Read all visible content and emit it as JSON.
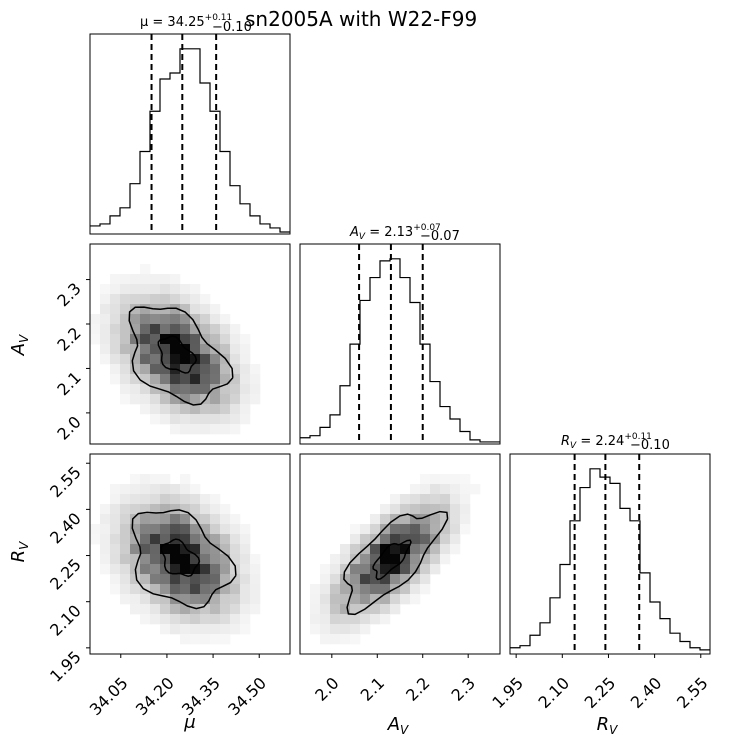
{
  "figure": {
    "suptitle": "sn2005A with W22-F99",
    "top_left_title": "μ = 34.25",
    "top_left_title_sup": "+0.11",
    "top_left_title_sub": "−0.10"
  },
  "chart_data": [
    {
      "type": "histogram",
      "panel": "mu-marginal",
      "title": "μ = 34.25 (+0.11 −0.10)",
      "xlim": [
        33.95,
        34.6
      ],
      "bins_edges": [
        33.95,
        33.9825,
        34.015,
        34.0475,
        34.08,
        34.1125,
        34.145,
        34.1775,
        34.21,
        34.2425,
        34.275,
        34.3075,
        34.34,
        34.3725,
        34.405,
        34.4375,
        34.47,
        34.5025,
        34.535,
        34.5675,
        34.6
      ],
      "counts": [
        4,
        5,
        9,
        13,
        25,
        41,
        61,
        77,
        80,
        92,
        92,
        75,
        61,
        41,
        24,
        15,
        9,
        5,
        3,
        1
      ],
      "quantiles": [
        34.15,
        34.25,
        34.36
      ]
    },
    {
      "type": "histogram",
      "panel": "av-marginal",
      "title_main": "A",
      "title_sub": "V",
      "title_value": " = 2.13",
      "title_sup": "+0.07",
      "title_subscript_err": "−0.07",
      "xlim": [
        1.93,
        2.37
      ],
      "bins_edges": [
        1.93,
        1.952,
        1.974,
        1.996,
        2.018,
        2.04,
        2.062,
        2.084,
        2.106,
        2.128,
        2.15,
        2.172,
        2.194,
        2.216,
        2.238,
        2.26,
        2.282,
        2.304,
        2.326,
        2.348,
        2.37
      ],
      "counts": [
        3,
        4,
        8,
        14,
        28,
        48,
        69,
        80,
        88,
        89,
        80,
        68,
        48,
        30,
        18,
        12,
        6,
        2,
        1,
        1
      ],
      "quantiles": [
        2.06,
        2.13,
        2.2
      ]
    },
    {
      "type": "histogram",
      "panel": "rv-marginal",
      "title_main": "R",
      "title_sub": "V",
      "title_value": " = 2.24",
      "title_sup": "+0.11",
      "title_subscript_err": "−0.10",
      "xlim": [
        1.93,
        2.58
      ],
      "bins_edges": [
        1.93,
        1.9625,
        1.995,
        2.0275,
        2.06,
        2.0925,
        2.125,
        2.1575,
        2.19,
        2.2225,
        2.255,
        2.2875,
        2.32,
        2.3525,
        2.385,
        2.4175,
        2.45,
        2.4825,
        2.515,
        2.5475,
        2.58
      ],
      "counts": [
        3,
        4,
        9,
        15,
        27,
        43,
        64,
        80,
        89,
        85,
        82,
        70,
        64,
        39,
        25,
        17,
        10,
        6,
        3,
        2
      ],
      "quantiles": [
        2.14,
        2.24,
        2.35
      ]
    },
    {
      "type": "heatmap",
      "panel": "av-vs-mu",
      "xlim": [
        33.95,
        34.6
      ],
      "ylim": [
        1.93,
        2.38
      ],
      "peak": {
        "x": 34.23,
        "y": 2.13
      },
      "correlation": -0.4,
      "xticks": [
        34.05,
        34.2,
        34.35,
        34.5
      ],
      "yticks": [
        2.0,
        2.1,
        2.2,
        2.3
      ]
    },
    {
      "type": "heatmap",
      "panel": "rv-vs-mu",
      "xlim": [
        33.95,
        34.6
      ],
      "ylim": [
        1.93,
        2.58
      ],
      "peak": {
        "x": 34.24,
        "y": 2.24
      },
      "correlation": -0.3,
      "xticks": [
        34.05,
        34.2,
        34.35,
        34.5
      ],
      "yticks": [
        1.95,
        2.1,
        2.25,
        2.4,
        2.55
      ]
    },
    {
      "type": "heatmap",
      "panel": "rv-vs-av",
      "xlim": [
        1.93,
        2.37
      ],
      "ylim": [
        1.93,
        2.58
      ],
      "peak": {
        "x": 2.13,
        "y": 2.24
      },
      "correlation": 0.7,
      "xticks": [
        2.0,
        2.1,
        2.2,
        2.3
      ],
      "yticks": []
    }
  ],
  "axes": {
    "mu_ticks": [
      "34.05",
      "34.20",
      "34.35",
      "34.50"
    ],
    "av_ticks": [
      "2.0",
      "2.1",
      "2.2",
      "2.3"
    ],
    "rv_ticks": [
      "1.95",
      "2.10",
      "2.25",
      "2.40",
      "2.55"
    ],
    "av_row_ticks": [
      "2.0",
      "2.1",
      "2.2",
      "2.3"
    ],
    "rv_row_ticks": [
      "1.95",
      "2.10",
      "2.25",
      "2.40",
      "2.55"
    ],
    "x_label_mu": "μ",
    "x_label_av": "A",
    "x_label_av_sub": "V",
    "x_label_rv": "R",
    "x_label_rv_sub": "V",
    "y_label_av": "A",
    "y_label_av_sub": "V",
    "y_label_rv": "R",
    "y_label_rv_sub": "V"
  }
}
